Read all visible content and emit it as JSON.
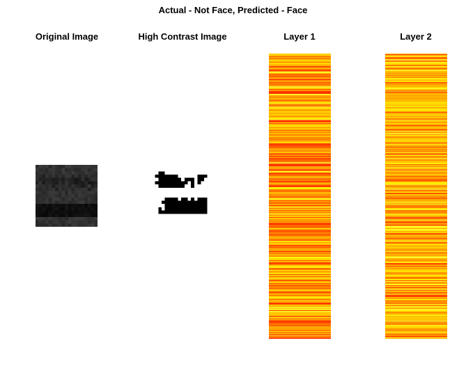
{
  "figure": {
    "title": "Actual - Not Face, Predicted - Face"
  },
  "panels": [
    {
      "title": "Original Image",
      "kind": "grayscale-image"
    },
    {
      "title": "High Contrast Image",
      "kind": "binary-image"
    },
    {
      "title": "Layer 1",
      "kind": "heat-strip",
      "colormap": "hot"
    },
    {
      "title": "Layer 2",
      "kind": "heat-strip",
      "colormap": "hot"
    }
  ],
  "colors": {
    "background": "#ffffff",
    "heat_red": "#e01a00",
    "heat_orange": "#ff8a00",
    "heat_yellow": "#ffff00",
    "binary_black": "#000000"
  }
}
